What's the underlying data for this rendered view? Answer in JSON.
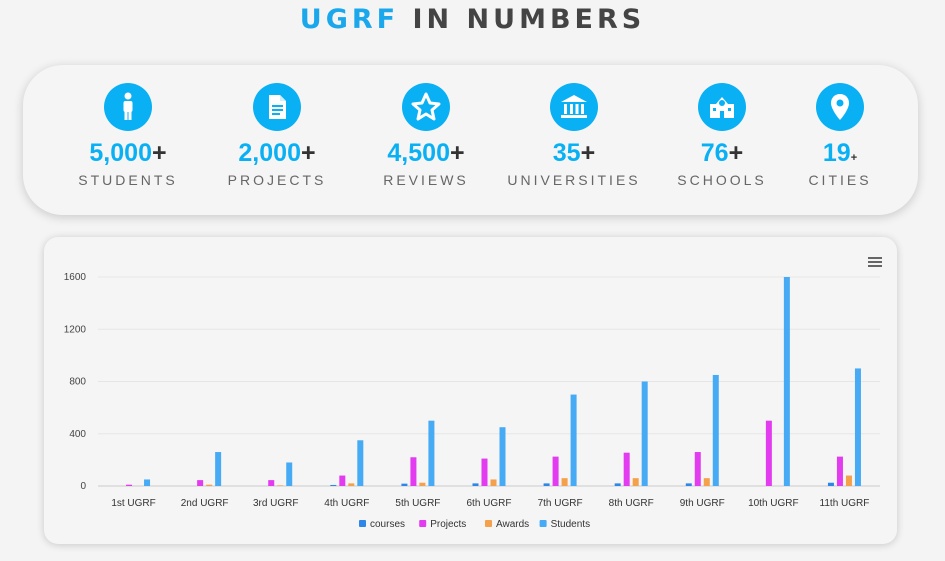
{
  "header": {
    "accent": "UGRF",
    "rest": "IN NUMBERS"
  },
  "stats": [
    {
      "icon": "person-icon",
      "value": "5,000",
      "suffix": "+",
      "label": "STUDENTS"
    },
    {
      "icon": "document-icon",
      "value": "2,000",
      "suffix": "+",
      "label": "PROJECTS"
    },
    {
      "icon": "star-icon",
      "value": "4,500",
      "suffix": "+",
      "label": "REVIEWS"
    },
    {
      "icon": "university-icon",
      "value": "35",
      "suffix": "+",
      "label": "UNIVERSITIES"
    },
    {
      "icon": "school-icon",
      "value": "76",
      "suffix": "+",
      "label": "SCHOOLS"
    },
    {
      "icon": "location-pin-icon",
      "value": "19",
      "suffix": "+",
      "label": "CITIES"
    }
  ],
  "colors": {
    "accent": "#0ab0f4",
    "courses": "#2e86e8",
    "projects": "#e23bf0",
    "awards": "#f5a04a",
    "students": "#46aaf5"
  },
  "chart_data": {
    "type": "bar",
    "categories": [
      "1st UGRF",
      "2nd UGRF",
      "3rd UGRF",
      "4th UGRF",
      "5th UGRF",
      "6th UGRF",
      "7th UGRF",
      "8th UGRF",
      "9th UGRF",
      "10th UGRF",
      "11th UGRF"
    ],
    "series": [
      {
        "name": "courses",
        "values": [
          0,
          0,
          0,
          8,
          18,
          20,
          20,
          20,
          20,
          0,
          25
        ]
      },
      {
        "name": "Projects",
        "values": [
          10,
          45,
          45,
          80,
          220,
          210,
          225,
          255,
          260,
          500,
          225
        ]
      },
      {
        "name": "Awards",
        "values": [
          0,
          10,
          5,
          20,
          25,
          50,
          60,
          60,
          60,
          0,
          80
        ]
      },
      {
        "name": "Students",
        "values": [
          50,
          260,
          180,
          350,
          500,
          450,
          700,
          800,
          850,
          1600,
          900
        ]
      }
    ],
    "yticks": [
      0,
      400,
      800,
      1200,
      1600
    ],
    "ylim": [
      0,
      1600
    ],
    "legend": "bottom",
    "grid": true
  }
}
